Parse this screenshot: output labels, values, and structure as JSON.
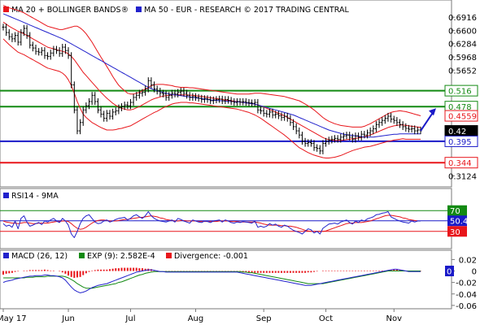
{
  "colors": {
    "ma20": "#e8161b",
    "ma50": "#2222cc",
    "bollinger": "#e8161b",
    "support": "#1a1ac8",
    "resistance": "#138a13",
    "stop": "#e8161b",
    "price": "#000000",
    "rsi": "#2222cc",
    "rsi_ma": "#e8161b",
    "macd": "#2222cc",
    "exp": "#138a13",
    "divergence": "#e8161b",
    "arrow": "#1a1ac8",
    "frame": "#7a7a7a",
    "badge_current_bg": "#000000",
    "badge_current_fg": "#ffffff"
  },
  "main": {
    "legend": [
      {
        "label": "MA 20 + BOLLINGER BANDS®",
        "color": "#e8161b"
      },
      {
        "label": "MA 50 - EUR - RESEARCH © 2017 TRADING CENTRAL",
        "color": "#2222cc"
      }
    ],
    "y_ticks": [
      "0.6916",
      "0.6600",
      "0.6284",
      "0.5968",
      "0.5652",
      "0.3124"
    ],
    "levels": [
      {
        "label": "0.516",
        "value": 0.516,
        "kind": "resistance"
      },
      {
        "label": "0.478",
        "value": 0.478,
        "kind": "resistance"
      },
      {
        "label": "0.4559",
        "value": 0.4559,
        "kind": "bollinger"
      },
      {
        "label": "0.42",
        "value": 0.42,
        "kind": "current"
      },
      {
        "label": "0.395",
        "value": 0.395,
        "kind": "support"
      },
      {
        "label": "0.344",
        "value": 0.344,
        "kind": "stop"
      }
    ]
  },
  "rsi": {
    "legend": "RSI14 - 9MA",
    "badges": [
      {
        "label": "70",
        "value": 70,
        "kind": "green"
      },
      {
        "label": "50.4",
        "value": 50.4,
        "kind": "blue"
      },
      {
        "label": "30",
        "value": 30,
        "kind": "red"
      }
    ]
  },
  "macd": {
    "legend": [
      {
        "label": "MACD (26, 12)",
        "color": "#2222cc"
      },
      {
        "label": "EXP (9): 2.582E-4",
        "color": "#138a13"
      },
      {
        "label": "Divergence: -0.001",
        "color": "#e8161b"
      }
    ],
    "y_ticks": [
      "0.02",
      "0",
      "-0.02",
      "-0.04",
      "-0.06"
    ],
    "badge": {
      "label": "0",
      "value": 0
    }
  },
  "x_axis": {
    "labels": [
      {
        "label": "May 17",
        "bar": 0
      },
      {
        "label": "Jun",
        "bar": 22
      },
      {
        "label": "Jul",
        "bar": 43
      },
      {
        "label": "Aug",
        "bar": 65
      },
      {
        "label": "Sep",
        "bar": 88
      },
      {
        "label": "Oct",
        "bar": 109
      },
      {
        "label": "Nov",
        "bar": 132
      }
    ]
  },
  "chart_data": {
    "type": "line",
    "title": "",
    "x_labels": [
      "May 17",
      "Jun",
      "Jul",
      "Aug",
      "Sep",
      "Oct",
      "Nov"
    ],
    "price_ylim": [
      0.29,
      0.725
    ],
    "price": [
      0.668,
      0.655,
      0.645,
      0.64,
      0.648,
      0.632,
      0.655,
      0.665,
      0.648,
      0.625,
      0.618,
      0.61,
      0.608,
      0.612,
      0.6,
      0.598,
      0.606,
      0.615,
      0.612,
      0.605,
      0.62,
      0.612,
      0.6,
      0.53,
      0.47,
      0.42,
      0.44,
      0.47,
      0.48,
      0.49,
      0.505,
      0.49,
      0.47,
      0.46,
      0.45,
      0.462,
      0.455,
      0.465,
      0.468,
      0.475,
      0.478,
      0.482,
      0.48,
      0.488,
      0.5,
      0.505,
      0.51,
      0.512,
      0.52,
      0.54,
      0.53,
      0.52,
      0.515,
      0.51,
      0.508,
      0.5,
      0.505,
      0.51,
      0.508,
      0.512,
      0.515,
      0.51,
      0.505,
      0.5,
      0.502,
      0.5,
      0.498,
      0.495,
      0.497,
      0.495,
      0.492,
      0.494,
      0.495,
      0.496,
      0.492,
      0.495,
      0.493,
      0.49,
      0.488,
      0.49,
      0.489,
      0.49,
      0.488,
      0.487,
      0.486,
      0.488,
      0.47,
      0.468,
      0.462,
      0.46,
      0.465,
      0.458,
      0.46,
      0.456,
      0.452,
      0.455,
      0.45,
      0.44,
      0.43,
      0.42,
      0.41,
      0.395,
      0.39,
      0.392,
      0.39,
      0.38,
      0.378,
      0.372,
      0.39,
      0.395,
      0.398,
      0.4,
      0.402,
      0.4,
      0.405,
      0.408,
      0.41,
      0.405,
      0.4,
      0.408,
      0.405,
      0.412,
      0.41,
      0.415,
      0.42,
      0.425,
      0.435,
      0.44,
      0.445,
      0.45,
      0.455,
      0.448,
      0.445,
      0.44,
      0.435,
      0.43,
      0.426,
      0.424,
      0.425,
      0.42,
      0.422,
      0.42
    ],
    "ma20": [
      0.68,
      0.675,
      0.67,
      0.666,
      0.662,
      0.658,
      0.655,
      0.652,
      0.648,
      0.644,
      0.64,
      0.636,
      0.632,
      0.628,
      0.624,
      0.62,
      0.618,
      0.616,
      0.614,
      0.612,
      0.61,
      0.608,
      0.604,
      0.598,
      0.59,
      0.58,
      0.57,
      0.56,
      0.552,
      0.544,
      0.536,
      0.528,
      0.52,
      0.512,
      0.505,
      0.498,
      0.492,
      0.486,
      0.481,
      0.477,
      0.474,
      0.472,
      0.47,
      0.47,
      0.472,
      0.475,
      0.478,
      0.482,
      0.486,
      0.49,
      0.494,
      0.497,
      0.499,
      0.501,
      0.503,
      0.504,
      0.505,
      0.506,
      0.506,
      0.506,
      0.506,
      0.506,
      0.506,
      0.505,
      0.505,
      0.504,
      0.503,
      0.502,
      0.501,
      0.5,
      0.499,
      0.498,
      0.497,
      0.496,
      0.495,
      0.494,
      0.493,
      0.492,
      0.491,
      0.49,
      0.489,
      0.488,
      0.487,
      0.486,
      0.485,
      0.484,
      0.482,
      0.48,
      0.477,
      0.474,
      0.471,
      0.468,
      0.465,
      0.462,
      0.459,
      0.456,
      0.452,
      0.448,
      0.444,
      0.44,
      0.436,
      0.432,
      0.428,
      0.424,
      0.42,
      0.416,
      0.412,
      0.408,
      0.404,
      0.401,
      0.399,
      0.398,
      0.397,
      0.397,
      0.397,
      0.398,
      0.399,
      0.4,
      0.401,
      0.402,
      0.403,
      0.404,
      0.406,
      0.408,
      0.41,
      0.413,
      0.416,
      0.419,
      0.422,
      0.425,
      0.428,
      0.43,
      0.432,
      0.433,
      0.434,
      0.434,
      0.433,
      0.432,
      0.431,
      0.43,
      0.429,
      0.428
    ],
    "ma50": [
      0.7,
      0.697,
      0.694,
      0.691,
      0.688,
      0.685,
      0.682,
      0.679,
      0.676,
      0.673,
      0.67,
      0.667,
      0.664,
      0.661,
      0.658,
      0.655,
      0.652,
      0.649,
      0.646,
      0.643,
      0.64,
      0.636,
      0.632,
      0.628,
      0.624,
      0.62,
      0.616,
      0.612,
      0.608,
      0.604,
      0.6,
      0.596,
      0.592,
      0.588,
      0.584,
      0.58,
      0.576,
      0.572,
      0.568,
      0.564,
      0.56,
      0.556,
      0.552,
      0.548,
      0.544,
      0.54,
      0.536,
      0.532,
      0.528,
      0.524,
      0.521,
      0.518,
      0.516,
      0.514,
      0.512,
      0.51,
      0.508,
      0.507,
      0.506,
      0.505,
      0.504,
      0.503,
      0.502,
      0.501,
      0.5,
      0.499,
      0.498,
      0.497,
      0.496,
      0.495,
      0.494,
      0.493,
      0.493,
      0.492,
      0.492,
      0.491,
      0.491,
      0.49,
      0.49,
      0.489,
      0.489,
      0.488,
      0.487,
      0.486,
      0.485,
      0.484,
      0.482,
      0.48,
      0.478,
      0.476,
      0.474,
      0.472,
      0.47,
      0.468,
      0.466,
      0.464,
      0.462,
      0.46,
      0.458,
      0.455,
      0.452,
      0.449,
      0.446,
      0.443,
      0.44,
      0.437,
      0.434,
      0.431,
      0.428,
      0.425,
      0.422,
      0.42,
      0.418,
      0.416,
      0.414,
      0.412,
      0.411,
      0.41,
      0.409,
      0.408,
      0.407,
      0.406,
      0.405,
      0.405,
      0.405,
      0.405,
      0.406,
      0.407,
      0.408,
      0.409,
      0.41,
      0.411,
      0.412,
      0.412,
      0.413,
      0.413,
      0.413,
      0.413,
      0.413,
      0.413,
      0.413,
      0.413
    ],
    "bb_width": [
      0.04,
      0.042,
      0.044,
      0.046,
      0.048,
      0.05,
      0.05,
      0.05,
      0.05,
      0.05,
      0.05,
      0.05,
      0.05,
      0.05,
      0.05,
      0.05,
      0.05,
      0.05,
      0.05,
      0.05,
      0.052,
      0.056,
      0.062,
      0.07,
      0.08,
      0.09,
      0.096,
      0.1,
      0.1,
      0.098,
      0.096,
      0.092,
      0.088,
      0.084,
      0.08,
      0.076,
      0.07,
      0.064,
      0.058,
      0.052,
      0.048,
      0.044,
      0.04,
      0.038,
      0.036,
      0.035,
      0.034,
      0.034,
      0.034,
      0.034,
      0.034,
      0.033,
      0.032,
      0.03,
      0.028,
      0.026,
      0.024,
      0.022,
      0.02,
      0.019,
      0.018,
      0.018,
      0.018,
      0.018,
      0.018,
      0.018,
      0.018,
      0.018,
      0.018,
      0.018,
      0.018,
      0.018,
      0.018,
      0.018,
      0.018,
      0.018,
      0.018,
      0.018,
      0.018,
      0.018,
      0.019,
      0.02,
      0.021,
      0.022,
      0.024,
      0.026,
      0.028,
      0.03,
      0.032,
      0.034,
      0.036,
      0.038,
      0.04,
      0.042,
      0.044,
      0.046,
      0.048,
      0.05,
      0.052,
      0.054,
      0.056,
      0.056,
      0.056,
      0.056,
      0.055,
      0.054,
      0.052,
      0.05,
      0.048,
      0.046,
      0.044,
      0.042,
      0.04,
      0.038,
      0.036,
      0.034,
      0.032,
      0.03,
      0.028,
      0.027,
      0.026,
      0.025,
      0.025,
      0.026,
      0.027,
      0.028,
      0.029,
      0.03,
      0.031,
      0.032,
      0.033,
      0.034,
      0.034,
      0.034,
      0.034,
      0.033,
      0.033,
      0.032,
      0.031,
      0.03,
      0.029,
      0.028
    ],
    "rsi_ylim": [
      0,
      100
    ],
    "rsi14": [
      45,
      40,
      42,
      38,
      50,
      35,
      55,
      60,
      48,
      40,
      42,
      45,
      47,
      43,
      50,
      48,
      52,
      55,
      50,
      47,
      55,
      50,
      42,
      25,
      18,
      30,
      45,
      55,
      60,
      62,
      55,
      48,
      45,
      46,
      50,
      52,
      48,
      50,
      53,
      55,
      56,
      57,
      52,
      55,
      60,
      62,
      58,
      55,
      60,
      68,
      60,
      55,
      52,
      50,
      49,
      48,
      50,
      52,
      48,
      55,
      53,
      50,
      48,
      46,
      52,
      50,
      48,
      47,
      50,
      49,
      47,
      50,
      51,
      52,
      48,
      52,
      50,
      47,
      46,
      48,
      47,
      49,
      48,
      47,
      46,
      50,
      38,
      40,
      38,
      40,
      45,
      42,
      44,
      40,
      38,
      42,
      40,
      36,
      32,
      30,
      28,
      25,
      30,
      35,
      33,
      27,
      30,
      25,
      36,
      40,
      44,
      45,
      46,
      44,
      48,
      50,
      52,
      47,
      44,
      50,
      47,
      52,
      50,
      54,
      56,
      58,
      62,
      63,
      65,
      66,
      68,
      58,
      55,
      52,
      50,
      48,
      47,
      46,
      50,
      48,
      50,
      50
    ],
    "rsi_ma": [
      50,
      48,
      47,
      46,
      46,
      45,
      46,
      47,
      47,
      46,
      45,
      45,
      46,
      46,
      46,
      46,
      47,
      48,
      49,
      49,
      50,
      50,
      49,
      45,
      40,
      36,
      34,
      35,
      38,
      42,
      46,
      49,
      51,
      52,
      52,
      51,
      50,
      50,
      50,
      51,
      52,
      53,
      53,
      54,
      55,
      56,
      57,
      57,
      58,
      59,
      60,
      59,
      58,
      56,
      55,
      53,
      52,
      51,
      50,
      50,
      51,
      51,
      50,
      50,
      50,
      50,
      49,
      49,
      49,
      49,
      49,
      49,
      49,
      50,
      50,
      50,
      50,
      49,
      49,
      49,
      48,
      48,
      48,
      48,
      48,
      48,
      47,
      46,
      44,
      43,
      42,
      42,
      42,
      42,
      41,
      41,
      40,
      40,
      39,
      38,
      36,
      34,
      32,
      31,
      30,
      30,
      30,
      30,
      30,
      31,
      33,
      35,
      37,
      39,
      41,
      43,
      45,
      46,
      46,
      47,
      47,
      47,
      48,
      49,
      50,
      52,
      54,
      56,
      58,
      60,
      61,
      61,
      60,
      59,
      58,
      56,
      55,
      53,
      52,
      51,
      50,
      50
    ],
    "rsi_levels": [
      70,
      50.4,
      30
    ],
    "macd_ylim": [
      -0.063,
      0.022
    ],
    "macd": [
      -0.02,
      -0.018,
      -0.017,
      -0.016,
      -0.014,
      -0.013,
      -0.012,
      -0.011,
      -0.01,
      -0.009,
      -0.009,
      -0.008,
      -0.008,
      -0.008,
      -0.007,
      -0.007,
      -0.008,
      -0.008,
      -0.009,
      -0.01,
      -0.012,
      -0.016,
      -0.022,
      -0.028,
      -0.033,
      -0.036,
      -0.038,
      -0.037,
      -0.035,
      -0.032,
      -0.029,
      -0.027,
      -0.025,
      -0.024,
      -0.023,
      -0.022,
      -0.02,
      -0.018,
      -0.016,
      -0.014,
      -0.012,
      -0.01,
      -0.008,
      -0.006,
      -0.004,
      -0.002,
      -0.001,
      0.0,
      0.001,
      0.002,
      0.002,
      0.001,
      0.0,
      -0.001,
      -0.001,
      -0.002,
      -0.002,
      -0.002,
      -0.002,
      -0.002,
      -0.002,
      -0.002,
      -0.002,
      -0.002,
      -0.002,
      -0.002,
      -0.002,
      -0.002,
      -0.002,
      -0.002,
      -0.002,
      -0.002,
      -0.002,
      -0.002,
      -0.002,
      -0.002,
      -0.002,
      -0.002,
      -0.002,
      -0.002,
      -0.003,
      -0.004,
      -0.005,
      -0.006,
      -0.007,
      -0.008,
      -0.009,
      -0.01,
      -0.011,
      -0.012,
      -0.013,
      -0.014,
      -0.015,
      -0.016,
      -0.017,
      -0.018,
      -0.019,
      -0.02,
      -0.021,
      -0.022,
      -0.023,
      -0.024,
      -0.025,
      -0.025,
      -0.025,
      -0.024,
      -0.023,
      -0.022,
      -0.021,
      -0.02,
      -0.019,
      -0.018,
      -0.017,
      -0.016,
      -0.015,
      -0.014,
      -0.013,
      -0.012,
      -0.011,
      -0.01,
      -0.009,
      -0.008,
      -0.007,
      -0.006,
      -0.005,
      -0.004,
      -0.003,
      -0.002,
      -0.001,
      0.0,
      0.001,
      0.002,
      0.003,
      0.003,
      0.002,
      0.001,
      0.0,
      -0.001,
      -0.001,
      -0.001,
      -0.001,
      -0.001
    ],
    "exp": [
      -0.012,
      -0.012,
      -0.012,
      -0.012,
      -0.012,
      -0.012,
      -0.012,
      -0.012,
      -0.011,
      -0.011,
      -0.011,
      -0.01,
      -0.01,
      -0.01,
      -0.01,
      -0.009,
      -0.009,
      -0.009,
      -0.009,
      -0.009,
      -0.009,
      -0.01,
      -0.012,
      -0.015,
      -0.018,
      -0.022,
      -0.025,
      -0.028,
      -0.03,
      -0.03,
      -0.03,
      -0.029,
      -0.028,
      -0.027,
      -0.026,
      -0.025,
      -0.024,
      -0.023,
      -0.022,
      -0.02,
      -0.019,
      -0.017,
      -0.015,
      -0.013,
      -0.011,
      -0.009,
      -0.007,
      -0.006,
      -0.004,
      -0.003,
      -0.002,
      -0.001,
      -0.001,
      -0.001,
      -0.001,
      -0.001,
      -0.001,
      -0.001,
      -0.001,
      -0.001,
      -0.001,
      -0.001,
      -0.001,
      -0.001,
      -0.001,
      -0.001,
      -0.001,
      -0.001,
      -0.001,
      -0.001,
      -0.001,
      -0.001,
      -0.001,
      -0.001,
      -0.001,
      -0.001,
      -0.001,
      -0.001,
      -0.001,
      -0.001,
      -0.001,
      -0.002,
      -0.002,
      -0.003,
      -0.003,
      -0.004,
      -0.005,
      -0.006,
      -0.007,
      -0.008,
      -0.009,
      -0.01,
      -0.011,
      -0.012,
      -0.013,
      -0.014,
      -0.015,
      -0.016,
      -0.017,
      -0.018,
      -0.019,
      -0.02,
      -0.021,
      -0.022,
      -0.022,
      -0.022,
      -0.022,
      -0.022,
      -0.022,
      -0.021,
      -0.02,
      -0.019,
      -0.018,
      -0.017,
      -0.016,
      -0.015,
      -0.014,
      -0.013,
      -0.012,
      -0.011,
      -0.01,
      -0.009,
      -0.008,
      -0.007,
      -0.006,
      -0.005,
      -0.004,
      -0.003,
      -0.002,
      -0.001,
      0.0,
      0.0,
      0.0,
      0.0,
      0.0,
      0.0,
      0.0,
      0.0,
      0.0,
      0.0,
      0.0,
      0.0
    ]
  }
}
